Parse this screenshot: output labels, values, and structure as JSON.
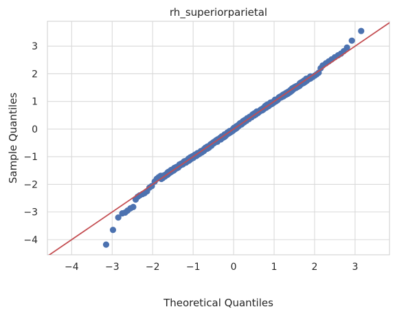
{
  "chart_data": {
    "type": "scatter",
    "title": "rh_superiorparietal",
    "xlabel": "Theoretical Quantiles",
    "ylabel": "Sample Quantiles",
    "xlim": [
      -4.6,
      3.85
    ],
    "ylim": [
      -4.55,
      3.9
    ],
    "x_ticks": [
      -4,
      -3,
      -2,
      -1,
      0,
      1,
      2,
      3
    ],
    "y_ticks": [
      -4,
      -3,
      -2,
      -1,
      0,
      1,
      2,
      3
    ],
    "x_tick_labels": [
      "−4",
      "−3",
      "−2",
      "−1",
      "0",
      "1",
      "2",
      "3"
    ],
    "y_tick_labels": [
      "−4",
      "−3",
      "−2",
      "−1",
      "0",
      "1",
      "2",
      "3"
    ],
    "grid": true,
    "reference_line": {
      "slope": 1,
      "intercept": 0,
      "color": "#c44e52"
    },
    "marker_color": "#4c72b0",
    "points_tail": [
      [
        -3.15,
        -4.18
      ],
      [
        -2.98,
        -3.65
      ],
      [
        -2.85,
        -3.2
      ],
      [
        -2.75,
        -3.05
      ],
      [
        -2.68,
        -3.02
      ],
      [
        -2.62,
        -2.95
      ],
      [
        -2.55,
        -2.87
      ],
      [
        -2.48,
        -2.82
      ],
      [
        -2.42,
        -2.55
      ],
      [
        -2.37,
        -2.45
      ],
      [
        -2.32,
        -2.4
      ],
      [
        -2.25,
        -2.35
      ],
      [
        -2.2,
        -2.32
      ],
      [
        -2.14,
        -2.25
      ],
      [
        -2.08,
        -2.12
      ],
      [
        -2.02,
        -2.06
      ],
      [
        -1.95,
        -1.9
      ],
      [
        -1.9,
        -1.8
      ],
      [
        -1.85,
        -1.74
      ],
      [
        -1.8,
        -1.69
      ],
      [
        1.9,
        1.83
      ],
      [
        1.95,
        1.88
      ],
      [
        2.0,
        1.93
      ],
      [
        2.05,
        1.98
      ],
      [
        2.1,
        2.04
      ],
      [
        2.15,
        2.2
      ],
      [
        2.2,
        2.3
      ],
      [
        2.28,
        2.38
      ],
      [
        2.35,
        2.45
      ],
      [
        2.42,
        2.52
      ],
      [
        2.5,
        2.6
      ],
      [
        2.58,
        2.67
      ],
      [
        2.65,
        2.73
      ],
      [
        2.72,
        2.82
      ],
      [
        2.8,
        2.95
      ],
      [
        2.92,
        3.2
      ],
      [
        3.15,
        3.55
      ]
    ],
    "body_range": [
      -1.8,
      1.9
    ],
    "body_count": 480
  }
}
